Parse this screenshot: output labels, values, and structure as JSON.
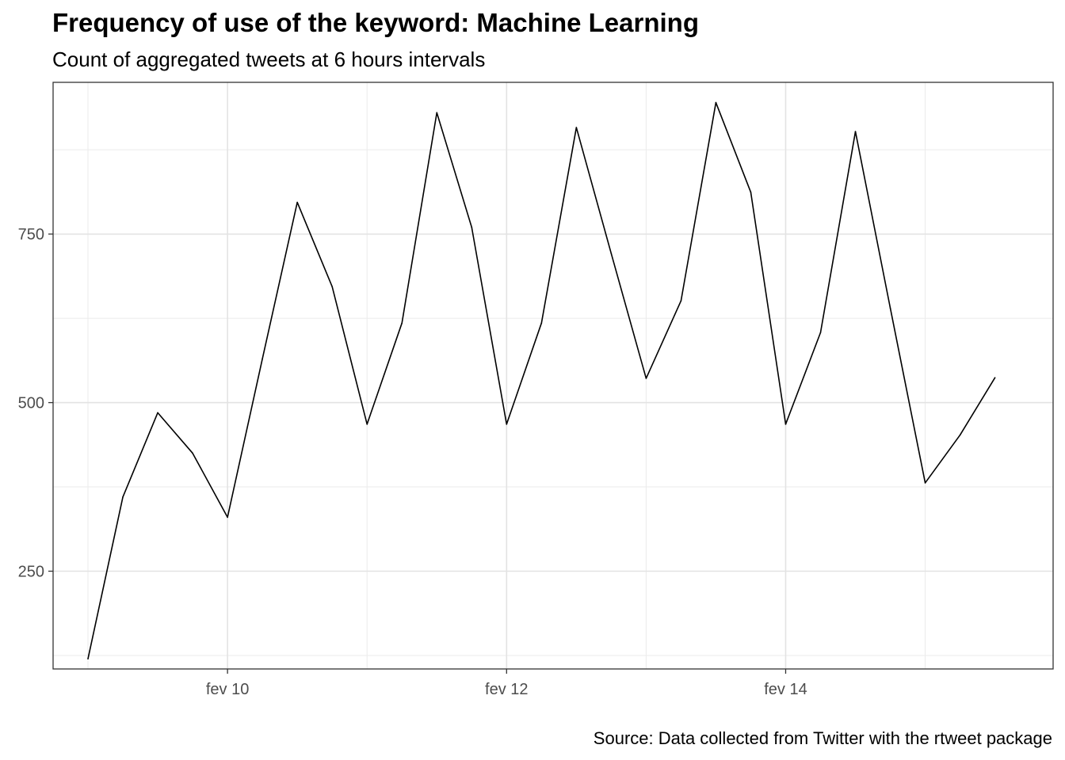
{
  "chart_data": {
    "type": "line",
    "title": "Frequency of use of the keyword: Machine Learning",
    "subtitle": "Count of aggregated tweets at 6 hours intervals",
    "caption": "Source: Data collected from Twitter with the rtweet package",
    "xlabel": "",
    "ylabel": "",
    "x_ticks": [
      {
        "label": "fev 10",
        "value": "2020-02-10"
      },
      {
        "label": "fev 12",
        "value": "2020-02-12"
      },
      {
        "label": "fev 14",
        "value": "2020-02-14"
      }
    ],
    "y_ticks": [
      250,
      500,
      750
    ],
    "xlim": [
      "2020-02-08 18:00",
      "2020-02-15 22:00"
    ],
    "ylim": [
      105,
      975
    ],
    "grid": true,
    "line_color": "#000000",
    "x": [
      "2020-02-09 00:00",
      "2020-02-09 06:00",
      "2020-02-09 12:00",
      "2020-02-09 18:00",
      "2020-02-10 00:00",
      "2020-02-10 06:00",
      "2020-02-10 12:00",
      "2020-02-10 18:00",
      "2020-02-11 00:00",
      "2020-02-11 06:00",
      "2020-02-11 12:00",
      "2020-02-11 18:00",
      "2020-02-12 00:00",
      "2020-02-12 06:00",
      "2020-02-12 12:00",
      "2020-02-12 18:00",
      "2020-02-13 00:00",
      "2020-02-13 06:00",
      "2020-02-13 12:00",
      "2020-02-13 18:00",
      "2020-02-14 00:00",
      "2020-02-14 06:00",
      "2020-02-14 12:00",
      "2020-02-14 18:00",
      "2020-02-15 00:00",
      "2020-02-15 06:00",
      "2020-02-15 12:00"
    ],
    "values": [
      120,
      360,
      485,
      425,
      330,
      565,
      797,
      672,
      468,
      618,
      930,
      760,
      468,
      618,
      908,
      721,
      536,
      651,
      945,
      812,
      468,
      604,
      902,
      640,
      381,
      452,
      537
    ]
  }
}
